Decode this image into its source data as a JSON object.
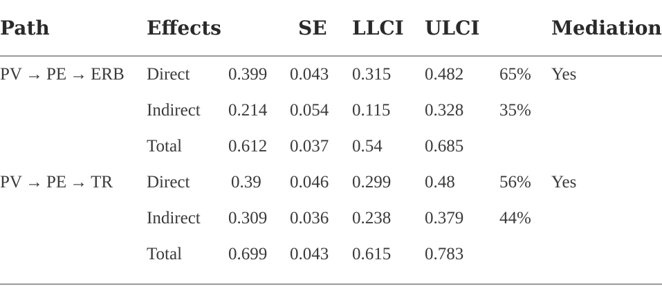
{
  "table": {
    "headers": {
      "path": "Path",
      "effects": "Effects",
      "se": "SE",
      "llci": "LLCI",
      "ulci": "ULCI",
      "mediation": "Mediation"
    },
    "rows": [
      {
        "path": "PV → PE → ERB",
        "effect": "Direct",
        "value": "0.399",
        "se": "0.043",
        "llci": "0.315",
        "ulci": "0.482",
        "pct": "65%",
        "mediation": "Yes"
      },
      {
        "path": "",
        "effect": "Indirect",
        "value": "0.214",
        "se": "0.054",
        "llci": "0.115",
        "ulci": "0.328",
        "pct": "35%",
        "mediation": ""
      },
      {
        "path": "",
        "effect": "Total",
        "value": "0.612",
        "se": "0.037",
        "llci": "0.54",
        "ulci": "0.685",
        "pct": "",
        "mediation": ""
      },
      {
        "path": "PV → PE → TR",
        "effect": "Direct",
        "value": "0.39",
        "se": "0.046",
        "llci": "0.299",
        "ulci": "0.48",
        "pct": "56%",
        "mediation": "Yes"
      },
      {
        "path": "",
        "effect": "Indirect",
        "value": "0.309",
        "se": "0.036",
        "llci": "0.238",
        "ulci": "0.379",
        "pct": "44%",
        "mediation": ""
      },
      {
        "path": "",
        "effect": "Total",
        "value": "0.699",
        "se": "0.043",
        "llci": "0.615",
        "ulci": "0.783",
        "pct": "",
        "mediation": ""
      }
    ]
  }
}
